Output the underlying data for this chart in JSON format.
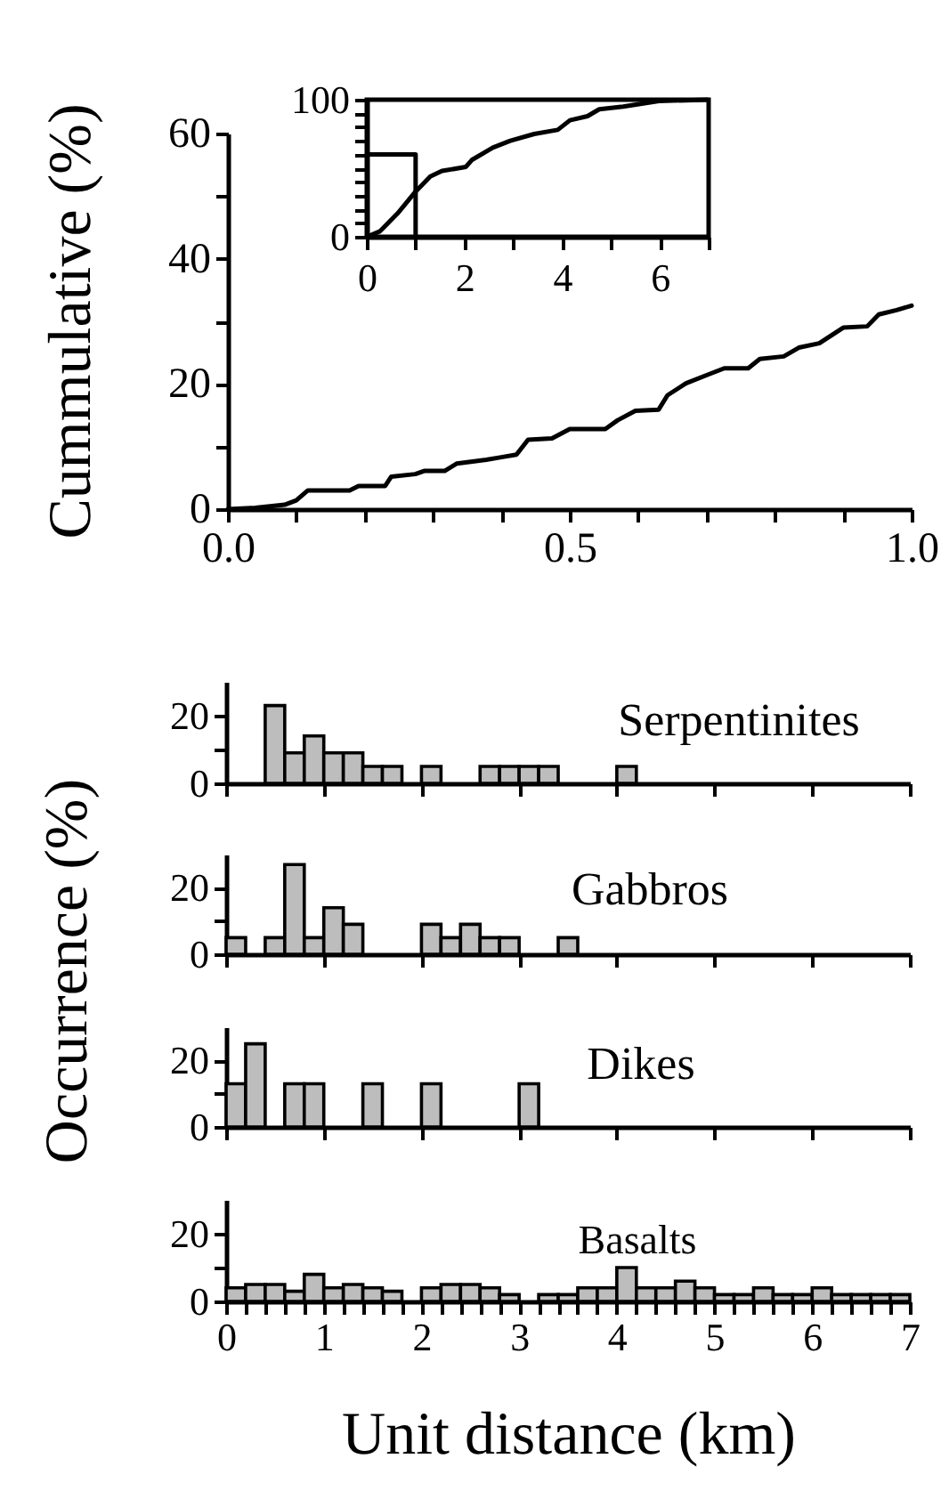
{
  "chart_data": [
    {
      "type": "line",
      "ylabel": "Cummulative (%)",
      "xlim": [
        0,
        1
      ],
      "ylim": [
        0,
        60
      ],
      "xticks": [
        {
          "value": 0,
          "label": "0.0"
        },
        {
          "value": 0.1,
          "label": null
        },
        {
          "value": 0.2,
          "label": null
        },
        {
          "value": 0.3,
          "label": null
        },
        {
          "value": 0.4,
          "label": null
        },
        {
          "value": 0.5,
          "label": "0.5"
        },
        {
          "value": 0.6,
          "label": null
        },
        {
          "value": 0.7,
          "label": null
        },
        {
          "value": 0.8,
          "label": null
        },
        {
          "value": 0.9,
          "label": null
        },
        {
          "value": 1,
          "label": "1.0"
        }
      ],
      "yticks": [
        0,
        {
          "value": 10,
          "label": null
        },
        20,
        {
          "value": 30,
          "label": null
        },
        40,
        {
          "value": 50,
          "label": null
        },
        60
      ],
      "series": [
        {
          "color": "#000000",
          "x": [
            0,
            0.04,
            0.083,
            0.1,
            0.117,
            0.178,
            0.191,
            0.23,
            0.239,
            0.274,
            0.287,
            0.317,
            0.335,
            0.378,
            0.4,
            0.422,
            0.439,
            0.474,
            0.5,
            0.552,
            0.57,
            0.596,
            0.63,
            0.643,
            0.67,
            0.7,
            0.726,
            0.761,
            0.778,
            0.813,
            0.835,
            0.865,
            0.9,
            0.935,
            0.952,
            0.978,
            1
          ],
          "values": [
            0,
            0.2,
            0.7,
            1.4,
            3,
            3,
            3.7,
            3.7,
            5.2,
            5.6,
            6.1,
            6.1,
            7.3,
            7.9,
            8.3,
            8.7,
            11.1,
            11.3,
            12.8,
            12.8,
            14.2,
            15.7,
            15.9,
            18.2,
            20.1,
            21.4,
            22.5,
            22.5,
            24,
            24.4,
            25.8,
            26.5,
            29,
            29.2,
            31.1,
            31.8,
            32.5
          ]
        }
      ]
    },
    {
      "type": "line",
      "xlim": [
        0,
        7
      ],
      "ylim": [
        0,
        100
      ],
      "xticks": [
        0,
        {
          "value": 1,
          "label": null
        },
        2,
        {
          "value": 3,
          "label": null
        },
        4,
        {
          "value": 5,
          "label": null
        },
        6,
        {
          "value": 7,
          "label": null
        }
      ],
      "yticks": [
        0,
        {
          "value": 10,
          "label": null
        },
        {
          "value": 20,
          "label": null
        },
        {
          "value": 30,
          "label": null
        },
        {
          "value": 40,
          "label": null
        },
        {
          "value": 50,
          "label": null
        },
        {
          "value": 60,
          "label": null
        },
        {
          "value": 70,
          "label": null
        },
        {
          "value": 80,
          "label": null
        },
        {
          "value": 90,
          "label": null
        },
        100
      ],
      "series": [
        {
          "color": "#000000",
          "x": [
            0,
            0.27,
            0.63,
            1,
            1.3,
            1.54,
            2.03,
            2.15,
            2.58,
            2.94,
            3.43,
            3.91,
            4.16,
            4.52,
            4.76,
            5.25,
            5.98,
            6.97
          ],
          "values": [
            0,
            4,
            17,
            33,
            44,
            48,
            51,
            56,
            65,
            70,
            75,
            78,
            85,
            88,
            93,
            95,
            99,
            100
          ]
        },
        {
          "color": "#000000",
          "x": [
            0,
            1,
            1
          ],
          "values": [
            60,
            60,
            0
          ]
        }
      ]
    },
    {
      "type": "histogram",
      "xlim": [
        0,
        7
      ],
      "ylim": [
        0,
        30
      ],
      "xticks": [
        0,
        1,
        2,
        3,
        4,
        5,
        6,
        7
      ],
      "yticks": [
        0,
        {
          "value": 10,
          "label": null
        },
        20
      ],
      "tick_labels": "y",
      "bins": [
        0,
        0.2,
        0.4,
        0.6,
        0.8,
        1,
        1.2,
        1.4,
        1.6,
        1.8,
        2,
        2.2,
        2.4,
        2.6,
        2.8,
        3,
        3.2,
        3.4,
        3.6,
        3.8,
        4,
        4.2,
        4.4,
        4.6,
        4.8,
        5,
        5.2,
        5.4,
        5.6,
        5.8,
        6,
        6.2,
        6.4,
        6.6,
        6.8,
        7
      ],
      "series": [
        {
          "name": "Serpentinites",
          "color": "#bdbdbd",
          "values": [
            0,
            0,
            23,
            9,
            14,
            9,
            9,
            5,
            5,
            0,
            5,
            0,
            0,
            5,
            5,
            5,
            5,
            0,
            0,
            0,
            5,
            0,
            0,
            0,
            0,
            0,
            0,
            0,
            0,
            0,
            0,
            0,
            0,
            0,
            0
          ]
        }
      ]
    },
    {
      "type": "histogram",
      "ylabel": "Occurrence (%)",
      "xlim": [
        0,
        7
      ],
      "ylim": [
        0,
        30
      ],
      "xticks": [
        0,
        1,
        2,
        3,
        4,
        5,
        6,
        7
      ],
      "yticks": [
        0,
        {
          "value": 10,
          "label": null
        },
        20
      ],
      "tick_labels": "y",
      "bins": [
        0,
        0.2,
        0.4,
        0.6,
        0.8,
        1,
        1.2,
        1.4,
        1.6,
        1.8,
        2,
        2.2,
        2.4,
        2.6,
        2.8,
        3,
        3.2,
        3.4,
        3.6,
        3.8,
        4,
        4.2,
        4.4,
        4.6,
        4.8,
        5,
        5.2,
        5.4,
        5.6,
        5.8,
        6,
        6.2,
        6.4,
        6.6,
        6.8,
        7
      ],
      "series": [
        {
          "name": "Gabbros",
          "color": "#bdbdbd",
          "values": [
            5,
            0,
            5,
            27,
            5,
            14,
            9,
            0,
            0,
            0,
            9,
            5,
            9,
            5,
            5,
            0,
            0,
            5,
            0,
            0,
            0,
            0,
            0,
            0,
            0,
            0,
            0,
            0,
            0,
            0,
            0,
            0,
            0,
            0,
            0
          ]
        }
      ]
    },
    {
      "type": "histogram",
      "xlim": [
        0,
        7
      ],
      "ylim": [
        0,
        30
      ],
      "xticks": [
        0,
        1,
        2,
        3,
        4,
        5,
        6,
        7
      ],
      "yticks": [
        0,
        {
          "value": 10,
          "label": null
        },
        20
      ],
      "tick_labels": "y",
      "bins": [
        0,
        0.2,
        0.4,
        0.6,
        0.8,
        1,
        1.2,
        1.4,
        1.6,
        1.8,
        2,
        2.2,
        2.4,
        2.6,
        2.8,
        3,
        3.2,
        3.4,
        3.6,
        3.8,
        4,
        4.2,
        4.4,
        4.6,
        4.8,
        5,
        5.2,
        5.4,
        5.6,
        5.8,
        6,
        6.2,
        6.4,
        6.6,
        6.8,
        7
      ],
      "series": [
        {
          "name": "Dikes",
          "color": "#bdbdbd",
          "values": [
            13,
            25,
            0,
            13,
            13,
            0,
            0,
            13,
            0,
            0,
            13,
            0,
            0,
            0,
            0,
            13,
            0,
            0,
            0,
            0,
            0,
            0,
            0,
            0,
            0,
            0,
            0,
            0,
            0,
            0,
            0,
            0,
            0,
            0,
            0
          ]
        }
      ]
    },
    {
      "type": "histogram",
      "xlabel": "Unit distance (km)",
      "xlim": [
        0,
        7
      ],
      "ylim": [
        0,
        30
      ],
      "xticks": [
        0,
        {
          "value": 0.2,
          "label": null
        },
        {
          "value": 0.4,
          "label": null
        },
        {
          "value": 0.6,
          "label": null
        },
        {
          "value": 0.8,
          "label": null
        },
        1,
        {
          "value": 1.2,
          "label": null
        },
        {
          "value": 1.4,
          "label": null
        },
        {
          "value": 1.6,
          "label": null
        },
        {
          "value": 1.8,
          "label": null
        },
        2,
        {
          "value": 2.2,
          "label": null
        },
        {
          "value": 2.4,
          "label": null
        },
        {
          "value": 2.6,
          "label": null
        },
        {
          "value": 2.8,
          "label": null
        },
        3,
        {
          "value": 3.2,
          "label": null
        },
        {
          "value": 3.4,
          "label": null
        },
        {
          "value": 3.6,
          "label": null
        },
        {
          "value": 3.8,
          "label": null
        },
        4,
        {
          "value": 4.2,
          "label": null
        },
        {
          "value": 4.4,
          "label": null
        },
        {
          "value": 4.6,
          "label": null
        },
        {
          "value": 4.8,
          "label": null
        },
        5,
        {
          "value": 5.2,
          "label": null
        },
        {
          "value": 5.4,
          "label": null
        },
        {
          "value": 5.6,
          "label": null
        },
        {
          "value": 5.8,
          "label": null
        },
        6,
        {
          "value": 6.2,
          "label": null
        },
        {
          "value": 6.4,
          "label": null
        },
        {
          "value": 6.6,
          "label": null
        },
        {
          "value": 6.8,
          "label": null
        },
        7
      ],
      "yticks": [
        0,
        {
          "value": 10,
          "label": null
        },
        20
      ],
      "bins": [
        0,
        0.2,
        0.4,
        0.6,
        0.8,
        1,
        1.2,
        1.4,
        1.6,
        1.8,
        2,
        2.2,
        2.4,
        2.6,
        2.8,
        3,
        3.2,
        3.4,
        3.6,
        3.8,
        4,
        4.2,
        4.4,
        4.6,
        4.8,
        5,
        5.2,
        5.4,
        5.6,
        5.8,
        6,
        6.2,
        6.4,
        6.6,
        6.8,
        7
      ],
      "series": [
        {
          "name": "Basalts",
          "color": "#bdbdbd",
          "values": [
            4,
            5,
            5,
            3,
            8,
            4,
            5,
            4,
            3,
            0,
            4,
            5,
            5,
            4,
            2,
            0,
            2,
            2,
            4,
            4,
            10,
            4,
            4,
            6,
            4,
            2,
            2,
            4,
            2,
            2,
            4,
            2,
            2,
            2,
            2
          ]
        }
      ]
    }
  ]
}
